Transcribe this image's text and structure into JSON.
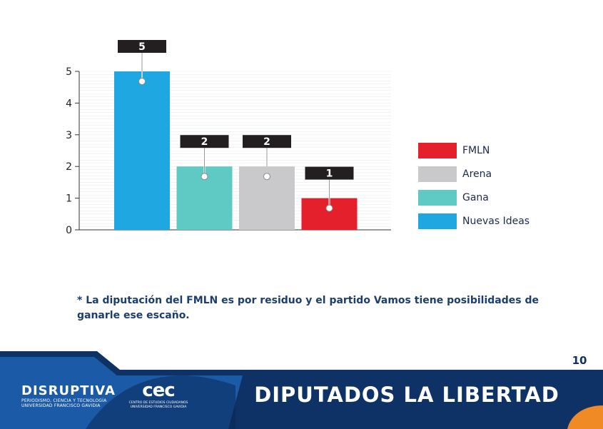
{
  "chart_data": {
    "type": "bar",
    "categories": [
      "Nuevas Ideas",
      "Gana",
      "Arena",
      "FMLN"
    ],
    "values": [
      5,
      2,
      2,
      1
    ],
    "data_labels": [
      "5",
      "2",
      "2",
      "1"
    ],
    "ylim": [
      0,
      5
    ],
    "yticks": [
      "0",
      "1",
      "2",
      "3",
      "4",
      "5"
    ],
    "grid": true,
    "legend_position": "right",
    "colors": [
      "#1ea7e0",
      "#5fc9c3",
      "#c9c9cb",
      "#e3202b"
    ],
    "legend": [
      {
        "label": "FMLN",
        "color": "#e3202b"
      },
      {
        "label": "Arena",
        "color": "#c9c9cb"
      },
      {
        "label": "Gana",
        "color": "#5fc9c3"
      },
      {
        "label": "Nuevas Ideas",
        "color": "#1ea7e0"
      }
    ]
  },
  "footnote": "* La diputación del FMLN es por residuo y el partido Vamos tiene posibilidades de ganarle ese escaño.",
  "footer": {
    "page_number": "10",
    "title": "DIPUTADOS LA LIBERTAD",
    "logo_disruptiva": {
      "name": "DISRUPTIVA",
      "sub1": "PERIODISMO, CIENCIA Y TECNOLOGÍA",
      "sub2": "UNIVERSIDAD FRANCISCO GAVIDIA"
    },
    "logo_cec": {
      "mark": "cec",
      "sub1": "CENTRO DE ESTUDIOS CIUDADANOS",
      "sub2": "UNIVERSIDAD FRANCISCO GAVIDIA"
    },
    "colors": {
      "navy": "#0e3266",
      "blue": "#1a5aa6",
      "orange": "#f08a24"
    }
  }
}
